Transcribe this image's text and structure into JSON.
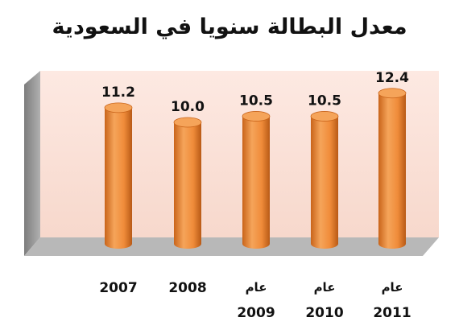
{
  "title": "معدل البطالة سنويا في السعودية",
  "colors": {
    "bar_body": "#f08c3a",
    "bar_dark": "#c9641a",
    "bar_top": "#f5a45a",
    "back_wall": "#fbe5dd",
    "side_wall": "#9a9a9a",
    "floor": "#b8b8b8"
  },
  "chart_data": {
    "type": "bar",
    "style": "3d-cylinder",
    "title": "معدل البطالة سنويا في السعودية",
    "categories": [
      {
        "line1": "",
        "line2": "2007"
      },
      {
        "line1": "",
        "line2": "2008"
      },
      {
        "line1": "عام",
        "line2": "2009"
      },
      {
        "line1": "عام",
        "line2": "2010"
      },
      {
        "line1": "عام",
        "line2": "2011"
      }
    ],
    "values": [
      11.2,
      10.0,
      10.5,
      10.5,
      12.4
    ],
    "value_labels": [
      "11.2",
      "10.0",
      "10.5",
      "10.5",
      "12.4"
    ],
    "grid": false,
    "legend": "none"
  }
}
